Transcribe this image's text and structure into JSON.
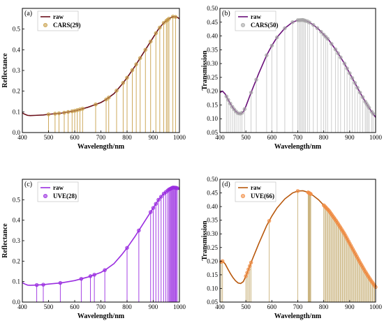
{
  "chart_data": [
    {
      "type": "line",
      "panel_label": "(a)",
      "xlabel": "Wavelength/nm",
      "ylabel": "Reflectance",
      "xlim": [
        400,
        1000
      ],
      "ylim": [
        0,
        0.6
      ],
      "xticks": [
        400,
        500,
        600,
        700,
        800,
        900,
        1000
      ],
      "yticks": [
        0.0,
        0.1,
        0.2,
        0.3,
        0.4,
        0.5
      ],
      "legend_position": "top-left",
      "line_color": "#6b0f1a",
      "marker_color": "#c8a04a",
      "stem_color": "#c8a04a",
      "curve_label": "raw",
      "selected_label": "CARS(29)",
      "curve": {
        "x": [
          400,
          410,
          420,
          430,
          450,
          480,
          500,
          550,
          600,
          650,
          700,
          720,
          750,
          780,
          800,
          830,
          850,
          880,
          900,
          920,
          940,
          960,
          975,
          990,
          1000
        ],
        "y": [
          0.095,
          0.088,
          0.083,
          0.082,
          0.083,
          0.085,
          0.088,
          0.094,
          0.105,
          0.122,
          0.145,
          0.16,
          0.188,
          0.232,
          0.265,
          0.32,
          0.36,
          0.42,
          0.46,
          0.5,
          0.53,
          0.55,
          0.56,
          0.558,
          0.55
        ]
      },
      "selected_x": [
        500,
        525,
        540,
        560,
        575,
        590,
        600,
        610,
        620,
        630,
        680,
        720,
        730,
        760,
        785,
        800,
        820,
        835,
        850,
        870,
        890,
        910,
        925,
        940,
        950,
        955,
        960,
        975,
        985
      ]
    },
    {
      "type": "line",
      "panel_label": "(b)",
      "xlabel": "Wavelength/nm",
      "ylabel": "Transmission",
      "xlim": [
        400,
        1000
      ],
      "ylim": [
        0.05,
        0.5
      ],
      "xticks": [
        400,
        500,
        600,
        700,
        800,
        900,
        1000
      ],
      "yticks": [
        0.05,
        0.1,
        0.15,
        0.2,
        0.25,
        0.3,
        0.35,
        0.4,
        0.45,
        0.5
      ],
      "legend_position": "top-left",
      "line_color": "#6a0f7a",
      "marker_color": "#a8a8a8",
      "stem_color": "#c8c8c8",
      "curve_label": "raw",
      "selected_label": "CARS(50)",
      "curve": {
        "x": [
          400,
          410,
          420,
          430,
          440,
          450,
          460,
          470,
          480,
          490,
          500,
          520,
          550,
          580,
          600,
          620,
          650,
          680,
          700,
          720,
          740,
          760,
          780,
          800,
          820,
          850,
          880,
          900,
          920,
          940,
          960,
          980,
          1000
        ],
        "y": [
          0.195,
          0.2,
          0.19,
          0.172,
          0.155,
          0.14,
          0.128,
          0.12,
          0.118,
          0.125,
          0.145,
          0.195,
          0.265,
          0.33,
          0.365,
          0.395,
          0.428,
          0.45,
          0.457,
          0.458,
          0.452,
          0.44,
          0.425,
          0.405,
          0.385,
          0.345,
          0.3,
          0.265,
          0.23,
          0.195,
          0.162,
          0.132,
          0.105
        ]
      },
      "selected_x": [
        425,
        432,
        440,
        448,
        455,
        462,
        470,
        478,
        485,
        495,
        520,
        540,
        580,
        600,
        620,
        650,
        680,
        700,
        705,
        710,
        715,
        720,
        725,
        730,
        738,
        745,
        760,
        775,
        790,
        800,
        808,
        815,
        830,
        845,
        855,
        865,
        880,
        890,
        900,
        910,
        920,
        930,
        940,
        950,
        960,
        965,
        970,
        975,
        985,
        990
      ]
    },
    {
      "type": "line",
      "panel_label": "(c)",
      "xlabel": "Wavelength/nm",
      "ylabel": "Reflectance",
      "xlim": [
        400,
        1000
      ],
      "ylim": [
        0,
        0.6
      ],
      "xticks": [
        400,
        500,
        600,
        700,
        800,
        900,
        1000
      ],
      "yticks": [
        0.0,
        0.1,
        0.2,
        0.3,
        0.4,
        0.5
      ],
      "legend_position": "top-left",
      "line_color": "#9a2ee0",
      "marker_color": "#9a2ee0",
      "stem_color": "#9a2ee0",
      "curve_label": "raw",
      "selected_label": "UVE(28)",
      "curve": {
        "x": [
          400,
          410,
          420,
          430,
          450,
          480,
          500,
          550,
          600,
          650,
          700,
          720,
          750,
          780,
          800,
          830,
          850,
          880,
          900,
          920,
          940,
          960,
          975,
          990,
          1000
        ],
        "y": [
          0.095,
          0.088,
          0.083,
          0.082,
          0.083,
          0.085,
          0.088,
          0.094,
          0.105,
          0.122,
          0.145,
          0.16,
          0.188,
          0.232,
          0.265,
          0.32,
          0.36,
          0.42,
          0.46,
          0.5,
          0.53,
          0.55,
          0.56,
          0.558,
          0.55
        ]
      },
      "selected_x": [
        455,
        480,
        545,
        625,
        660,
        675,
        715,
        800,
        845,
        890,
        900,
        910,
        920,
        930,
        940,
        948,
        955,
        960,
        963,
        967,
        970,
        973,
        976,
        979,
        982,
        985,
        988,
        992
      ]
    },
    {
      "type": "line",
      "panel_label": "(d)",
      "xlabel": "Wavelength/nm",
      "ylabel": "Transmission",
      "xlim": [
        400,
        1000
      ],
      "ylim": [
        0.05,
        0.5
      ],
      "xticks": [
        400,
        500,
        600,
        700,
        800,
        900,
        1000
      ],
      "yticks": [
        0.05,
        0.1,
        0.15,
        0.2,
        0.25,
        0.3,
        0.35,
        0.4,
        0.45,
        0.5
      ],
      "legend_position": "top-left",
      "line_color": "#b8580c",
      "marker_color": "#f29048",
      "stem_color": "#c9b27c",
      "curve_label": "raw",
      "selected_label": "UVE(66)",
      "curve": {
        "x": [
          400,
          410,
          420,
          430,
          440,
          450,
          460,
          470,
          480,
          490,
          500,
          520,
          550,
          580,
          600,
          620,
          650,
          680,
          700,
          720,
          740,
          760,
          780,
          800,
          820,
          850,
          880,
          900,
          920,
          940,
          960,
          980,
          1000
        ],
        "y": [
          0.195,
          0.2,
          0.19,
          0.172,
          0.155,
          0.14,
          0.128,
          0.12,
          0.118,
          0.125,
          0.145,
          0.195,
          0.265,
          0.33,
          0.365,
          0.395,
          0.428,
          0.45,
          0.457,
          0.458,
          0.452,
          0.44,
          0.425,
          0.405,
          0.385,
          0.345,
          0.3,
          0.265,
          0.23,
          0.195,
          0.162,
          0.132,
          0.105
        ]
      },
      "selected_x": [
        405,
        410,
        500,
        505,
        510,
        515,
        520,
        590,
        700,
        740,
        742,
        744,
        746,
        748,
        750,
        800,
        804,
        808,
        812,
        816,
        820,
        824,
        828,
        832,
        836,
        840,
        844,
        848,
        852,
        856,
        860,
        864,
        868,
        872,
        876,
        880,
        884,
        888,
        892,
        896,
        900,
        904,
        908,
        912,
        916,
        920,
        924,
        928,
        932,
        936,
        940,
        944,
        948,
        952,
        956,
        960,
        964,
        968,
        972,
        976,
        980,
        984,
        988,
        992,
        996,
        1000
      ]
    }
  ]
}
